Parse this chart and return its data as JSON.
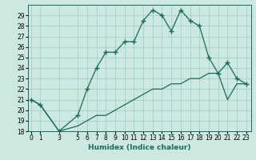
{
  "xlabel": "Humidex (Indice chaleur)",
  "x_upper": [
    0,
    1,
    3,
    5,
    6,
    7,
    8,
    9,
    10,
    11,
    12,
    13,
    14,
    15,
    16,
    17,
    18,
    19,
    20,
    21,
    22,
    23
  ],
  "y_upper": [
    21,
    20.5,
    18,
    19.5,
    22,
    24,
    25.5,
    25.5,
    26.5,
    26.5,
    28.5,
    29.5,
    29,
    27.5,
    29.5,
    28.5,
    28,
    25,
    23.5,
    24.5,
    23,
    22.5
  ],
  "x_lower": [
    0,
    1,
    3,
    5,
    6,
    7,
    8,
    9,
    10,
    11,
    12,
    13,
    14,
    15,
    16,
    17,
    18,
    19,
    20,
    21,
    22,
    23
  ],
  "y_lower": [
    21,
    20.5,
    18,
    18.5,
    19,
    19.5,
    19.5,
    20,
    20.5,
    21,
    21.5,
    22,
    22,
    22.5,
    22.5,
    23,
    23,
    23.5,
    23.5,
    21,
    22.5,
    22.5
  ],
  "line_color": "#1a6b5a",
  "bg_color": "#cce8e0",
  "grid_color": "#99ccc2",
  "ylim": [
    18,
    30
  ],
  "yticks": [
    18,
    19,
    20,
    21,
    22,
    23,
    24,
    25,
    26,
    27,
    28,
    29
  ],
  "xticks": [
    0,
    1,
    3,
    5,
    6,
    7,
    8,
    9,
    10,
    11,
    12,
    13,
    14,
    15,
    16,
    17,
    18,
    19,
    20,
    21,
    22,
    23
  ],
  "xlim": [
    -0.3,
    23.5
  ],
  "marker": "+",
  "markersize": 4,
  "markeredgewidth": 1.0,
  "linewidth": 0.9,
  "xlabel_fontsize": 6.5,
  "tick_labelsize": 5.5,
  "ylabel_fontsize": 6
}
